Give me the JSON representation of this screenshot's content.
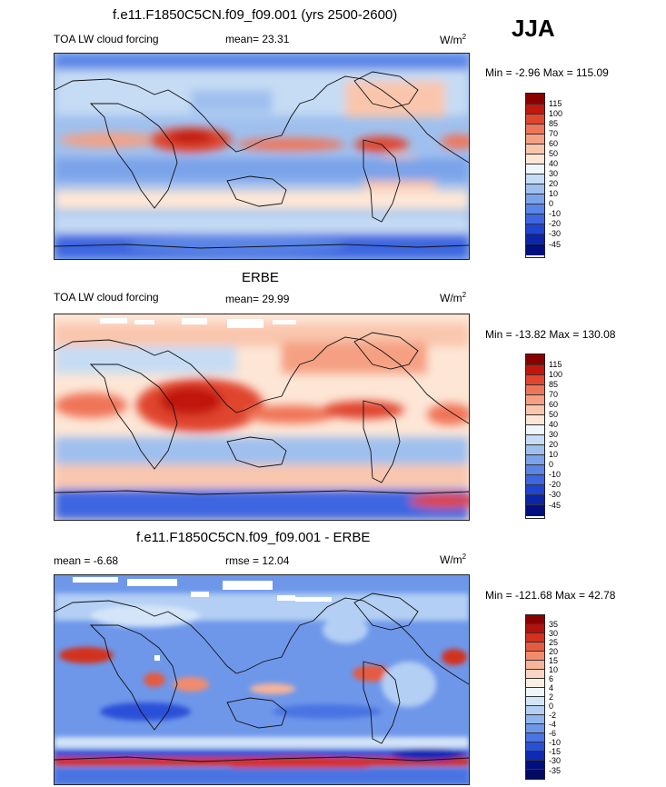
{
  "season": "JJA",
  "panels": [
    {
      "title": "f.e11.F1850C5CN.f09_f09.001 (yrs 2500-2600)",
      "left_label": "TOA LW cloud forcing",
      "mid_label": "mean=  23.31",
      "units": "W/m",
      "units_exp": "2",
      "minmax": "Min =  -2.96 Max = 115.09",
      "colorbar_labels": [
        "115",
        "100",
        "85",
        "70",
        "60",
        "50",
        "40",
        "30",
        "20",
        "10",
        "0",
        "-10",
        "-20",
        "-30",
        "-45"
      ]
    },
    {
      "title": "ERBE",
      "left_label": "TOA LW cloud forcing",
      "mid_label": "mean=  29.99",
      "units": "W/m",
      "units_exp": "2",
      "minmax": "Min = -13.82 Max = 130.08",
      "colorbar_labels": [
        "115",
        "100",
        "85",
        "70",
        "60",
        "50",
        "40",
        "30",
        "20",
        "10",
        "0",
        "-10",
        "-20",
        "-30",
        "-45"
      ]
    },
    {
      "title": "f.e11.F1850C5CN.f09_f09.001 - ERBE",
      "left_label": "mean =  -6.68",
      "mid_label": "rmse =  12.04",
      "units": "W/m",
      "units_exp": "2",
      "minmax": "Min = -121.68 Max =  42.78",
      "colorbar_labels": [
        "35",
        "30",
        "25",
        "20",
        "15",
        "10",
        "6",
        "4",
        "2",
        "0",
        "-2",
        "-4",
        "-6",
        "-10",
        "-15",
        "-30",
        "-35"
      ]
    }
  ],
  "colors": {
    "abs_scale": [
      "#8a0000",
      "#c1170d",
      "#e0452e",
      "#ef7558",
      "#f5a083",
      "#f9c6ad",
      "#fde6d6",
      "#eef6fb",
      "#c6dcf4",
      "#9fc0ee",
      "#7aa3ea",
      "#5a85e6",
      "#3d66e0",
      "#1f44cf",
      "#0b24a8",
      "#000f80"
    ],
    "diff_scale": [
      "#8a0000",
      "#b5110a",
      "#d3301f",
      "#e65a3f",
      "#f28b6c",
      "#f7b49a",
      "#fbd5c3",
      "#fdeee4",
      "#eef6fb",
      "#d4e5f8",
      "#b4cff4",
      "#8fb4ef",
      "#6e97ea",
      "#4a73e3",
      "#2a4fd8",
      "#0e2bb5",
      "#000f80"
    ]
  }
}
